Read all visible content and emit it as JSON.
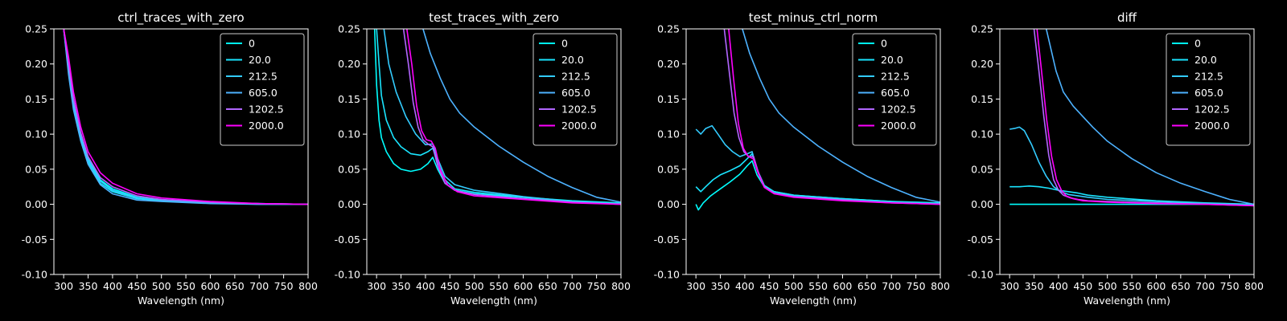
{
  "chart_data": [
    {
      "type": "line",
      "title": "ctrl_traces_with_zero",
      "xlabel": "Wavelength (nm)",
      "ylabel": "",
      "xlim": [
        280,
        800
      ],
      "ylim": [
        -0.1,
        0.25
      ],
      "xticks": [
        300,
        350,
        400,
        450,
        500,
        550,
        600,
        650,
        700,
        750,
        800
      ],
      "yticks": [
        -0.1,
        -0.05,
        0.0,
        0.05,
        0.1,
        0.15,
        0.2,
        0.25
      ],
      "legend_position": "top-right",
      "series": [
        {
          "name": "0",
          "color": "#00ffff",
          "x": [
            300,
            310,
            320,
            335,
            350,
            375,
            400,
            450,
            500,
            600,
            700,
            800
          ],
          "y": [
            0.25,
            0.2,
            0.15,
            0.1,
            0.065,
            0.035,
            0.022,
            0.01,
            0.006,
            0.002,
            0.001,
            0.0
          ]
        },
        {
          "name": "20.0",
          "color": "#1ae5ff",
          "x": [
            300,
            310,
            320,
            335,
            350,
            375,
            400,
            450,
            500,
            600,
            700,
            800
          ],
          "y": [
            0.25,
            0.19,
            0.14,
            0.095,
            0.06,
            0.03,
            0.018,
            0.008,
            0.005,
            0.002,
            0.0,
            0.0
          ]
        },
        {
          "name": "212.5",
          "color": "#33ccff",
          "x": [
            300,
            310,
            320,
            335,
            350,
            375,
            400,
            450,
            500,
            600,
            700,
            800
          ],
          "y": [
            0.25,
            0.195,
            0.145,
            0.1,
            0.063,
            0.033,
            0.02,
            0.009,
            0.006,
            0.002,
            0.001,
            0.0
          ]
        },
        {
          "name": "605.0",
          "color": "#4db2ff",
          "x": [
            300,
            310,
            320,
            335,
            350,
            375,
            400,
            450,
            500,
            600,
            700,
            800
          ],
          "y": [
            0.25,
            0.185,
            0.135,
            0.09,
            0.057,
            0.028,
            0.015,
            0.006,
            0.004,
            0.001,
            0.0,
            0.0
          ]
        },
        {
          "name": "1202.5",
          "color": "#b266ff",
          "x": [
            300,
            310,
            320,
            335,
            350,
            375,
            400,
            450,
            500,
            600,
            700,
            800
          ],
          "y": [
            0.25,
            0.2,
            0.15,
            0.102,
            0.068,
            0.038,
            0.025,
            0.012,
            0.007,
            0.003,
            0.001,
            0.0
          ]
        },
        {
          "name": "2000.0",
          "color": "#ff00ff",
          "x": [
            300,
            310,
            320,
            335,
            350,
            375,
            400,
            450,
            500,
            600,
            700,
            800
          ],
          "y": [
            0.25,
            0.21,
            0.16,
            0.11,
            0.075,
            0.045,
            0.03,
            0.015,
            0.009,
            0.004,
            0.001,
            0.0
          ]
        }
      ]
    },
    {
      "type": "line",
      "title": "test_traces_with_zero",
      "xlabel": "Wavelength (nm)",
      "ylabel": "",
      "xlim": [
        280,
        800
      ],
      "ylim": [
        -0.1,
        0.25
      ],
      "xticks": [
        300,
        350,
        400,
        450,
        500,
        550,
        600,
        650,
        700,
        750,
        800
      ],
      "yticks": [
        -0.1,
        -0.05,
        0.0,
        0.05,
        0.1,
        0.15,
        0.2,
        0.25
      ],
      "legend_position": "top-right",
      "series": [
        {
          "name": "0",
          "color": "#00ffff",
          "x": [
            296,
            300,
            305,
            310,
            320,
            335,
            350,
            370,
            390,
            405,
            415,
            425,
            440,
            460,
            500,
            600,
            700,
            800
          ],
          "y": [
            0.25,
            0.17,
            0.12,
            0.095,
            0.075,
            0.058,
            0.05,
            0.047,
            0.05,
            0.058,
            0.067,
            0.05,
            0.03,
            0.02,
            0.015,
            0.01,
            0.005,
            0.002
          ]
        },
        {
          "name": "20.0",
          "color": "#1ae5ff",
          "x": [
            300,
            305,
            310,
            320,
            335,
            350,
            370,
            390,
            405,
            415,
            425,
            440,
            460,
            500,
            600,
            700,
            800
          ],
          "y": [
            0.25,
            0.2,
            0.155,
            0.12,
            0.095,
            0.082,
            0.072,
            0.07,
            0.075,
            0.08,
            0.06,
            0.035,
            0.022,
            0.017,
            0.01,
            0.004,
            0.001
          ]
        },
        {
          "name": "212.5",
          "color": "#33ccff",
          "x": [
            315,
            325,
            340,
            360,
            380,
            400,
            415,
            425,
            440,
            460,
            500,
            600,
            700,
            800
          ],
          "y": [
            0.25,
            0.2,
            0.16,
            0.125,
            0.1,
            0.085,
            0.086,
            0.065,
            0.04,
            0.028,
            0.02,
            0.011,
            0.004,
            0.001
          ]
        },
        {
          "name": "605.0",
          "color": "#4db2ff",
          "x": [
            395,
            410,
            430,
            450,
            470,
            500,
            550,
            600,
            650,
            700,
            750,
            800
          ],
          "y": [
            0.25,
            0.215,
            0.18,
            0.15,
            0.13,
            0.11,
            0.083,
            0.06,
            0.04,
            0.024,
            0.01,
            0.003
          ]
        },
        {
          "name": "1202.5",
          "color": "#b266ff",
          "x": [
            355,
            365,
            375,
            385,
            395,
            405,
            415,
            425,
            440,
            460,
            500,
            600,
            700,
            800
          ],
          "y": [
            0.25,
            0.2,
            0.145,
            0.11,
            0.092,
            0.086,
            0.082,
            0.055,
            0.03,
            0.02,
            0.014,
            0.008,
            0.003,
            0.0
          ]
        },
        {
          "name": "2000.0",
          "color": "#ff00ff",
          "x": [
            362,
            372,
            382,
            392,
            402,
            412,
            420,
            430,
            445,
            465,
            500,
            600,
            700,
            800
          ],
          "y": [
            0.25,
            0.2,
            0.14,
            0.105,
            0.092,
            0.09,
            0.08,
            0.05,
            0.028,
            0.018,
            0.012,
            0.007,
            0.002,
            0.0
          ]
        }
      ]
    },
    {
      "type": "line",
      "title": "test_minus_ctrl_norm",
      "xlabel": "Wavelength (nm)",
      "ylabel": "",
      "xlim": [
        280,
        800
      ],
      "ylim": [
        -0.1,
        0.25
      ],
      "xticks": [
        300,
        350,
        400,
        450,
        500,
        550,
        600,
        650,
        700,
        750,
        800
      ],
      "yticks": [
        -0.1,
        -0.05,
        0.0,
        0.05,
        0.1,
        0.15,
        0.2,
        0.25
      ],
      "legend_position": "top-right",
      "series": [
        {
          "name": "0",
          "color": "#00ffff",
          "x": [
            300,
            305,
            315,
            330,
            350,
            370,
            390,
            405,
            415,
            425,
            440,
            460,
            500,
            600,
            700,
            800
          ],
          "y": [
            0.0,
            -0.008,
            0.002,
            0.012,
            0.022,
            0.032,
            0.043,
            0.055,
            0.062,
            0.042,
            0.025,
            0.018,
            0.013,
            0.008,
            0.004,
            0.002
          ]
        },
        {
          "name": "20.0",
          "color": "#1ae5ff",
          "x": [
            300,
            310,
            320,
            335,
            350,
            370,
            390,
            405,
            415,
            425,
            440,
            460,
            500,
            600,
            700,
            800
          ],
          "y": [
            0.025,
            0.018,
            0.025,
            0.035,
            0.042,
            0.048,
            0.055,
            0.065,
            0.072,
            0.05,
            0.027,
            0.018,
            0.013,
            0.008,
            0.004,
            0.001
          ]
        },
        {
          "name": "212.5",
          "color": "#33ccff",
          "x": [
            300,
            310,
            320,
            333,
            345,
            360,
            375,
            390,
            405,
            415,
            425,
            440,
            460,
            500,
            600,
            700,
            800
          ],
          "y": [
            0.107,
            0.1,
            0.108,
            0.112,
            0.1,
            0.085,
            0.075,
            0.068,
            0.072,
            0.075,
            0.05,
            0.025,
            0.016,
            0.012,
            0.007,
            0.003,
            0.001
          ]
        },
        {
          "name": "605.0",
          "color": "#4db2ff",
          "x": [
            395,
            410,
            430,
            450,
            470,
            500,
            550,
            600,
            650,
            700,
            750,
            800
          ],
          "y": [
            0.25,
            0.215,
            0.18,
            0.15,
            0.13,
            0.11,
            0.083,
            0.06,
            0.04,
            0.024,
            0.01,
            0.003
          ]
        },
        {
          "name": "1202.5",
          "color": "#b266ff",
          "x": [
            358,
            368,
            378,
            388,
            398,
            408,
            418,
            428,
            440,
            460,
            500,
            600,
            700,
            800
          ],
          "y": [
            0.25,
            0.19,
            0.13,
            0.095,
            0.075,
            0.068,
            0.068,
            0.045,
            0.025,
            0.016,
            0.011,
            0.006,
            0.002,
            0.0
          ]
        },
        {
          "name": "2000.0",
          "color": "#ff00ff",
          "x": [
            367,
            377,
            387,
            397,
            407,
            417,
            427,
            440,
            460,
            500,
            600,
            700,
            800
          ],
          "y": [
            0.25,
            0.18,
            0.115,
            0.08,
            0.068,
            0.065,
            0.045,
            0.024,
            0.015,
            0.01,
            0.005,
            0.002,
            0.0
          ]
        }
      ]
    },
    {
      "type": "line",
      "title": "diff",
      "xlabel": "Wavelength (nm)",
      "ylabel": "",
      "xlim": [
        280,
        800
      ],
      "ylim": [
        -0.1,
        0.25
      ],
      "xticks": [
        300,
        350,
        400,
        450,
        500,
        550,
        600,
        650,
        700,
        750,
        800
      ],
      "yticks": [
        -0.1,
        -0.05,
        0.0,
        0.05,
        0.1,
        0.15,
        0.2,
        0.25
      ],
      "legend_position": "top-right",
      "series": [
        {
          "name": "0",
          "color": "#00ffff",
          "x": [
            300,
            800
          ],
          "y": [
            0.0,
            0.0
          ]
        },
        {
          "name": "20.0",
          "color": "#1ae5ff",
          "x": [
            300,
            320,
            340,
            360,
            380,
            400,
            420,
            440,
            460,
            500,
            600,
            700,
            800
          ],
          "y": [
            0.025,
            0.025,
            0.026,
            0.025,
            0.023,
            0.02,
            0.018,
            0.016,
            0.013,
            0.01,
            0.005,
            0.002,
            0.0
          ]
        },
        {
          "name": "212.5",
          "color": "#33ccff",
          "x": [
            300,
            310,
            320,
            330,
            345,
            360,
            375,
            390,
            405,
            420,
            440,
            460,
            500,
            600,
            700,
            800
          ],
          "y": [
            0.107,
            0.108,
            0.11,
            0.105,
            0.085,
            0.06,
            0.04,
            0.025,
            0.018,
            0.014,
            0.012,
            0.01,
            0.007,
            0.004,
            0.001,
            0.0
          ]
        },
        {
          "name": "605.0",
          "color": "#4db2ff",
          "x": [
            375,
            385,
            395,
            410,
            430,
            450,
            470,
            500,
            550,
            600,
            650,
            700,
            750,
            800
          ],
          "y": [
            0.25,
            0.22,
            0.19,
            0.16,
            0.14,
            0.125,
            0.11,
            0.09,
            0.065,
            0.045,
            0.03,
            0.018,
            0.007,
            0.0
          ]
        },
        {
          "name": "1202.5",
          "color": "#b266ff",
          "x": [
            350,
            360,
            370,
            380,
            390,
            400,
            410,
            425,
            440,
            460,
            500,
            600,
            700,
            800
          ],
          "y": [
            0.25,
            0.19,
            0.125,
            0.07,
            0.035,
            0.02,
            0.013,
            0.009,
            0.007,
            0.005,
            0.004,
            0.002,
            0.0,
            -0.002
          ]
        },
        {
          "name": "2000.0",
          "color": "#ff00ff",
          "x": [
            356,
            366,
            376,
            386,
            396,
            406,
            416,
            430,
            450,
            500,
            600,
            700,
            800
          ],
          "y": [
            0.25,
            0.185,
            0.12,
            0.068,
            0.035,
            0.02,
            0.012,
            0.008,
            0.005,
            0.003,
            0.001,
            0.0,
            -0.002
          ]
        }
      ]
    }
  ]
}
